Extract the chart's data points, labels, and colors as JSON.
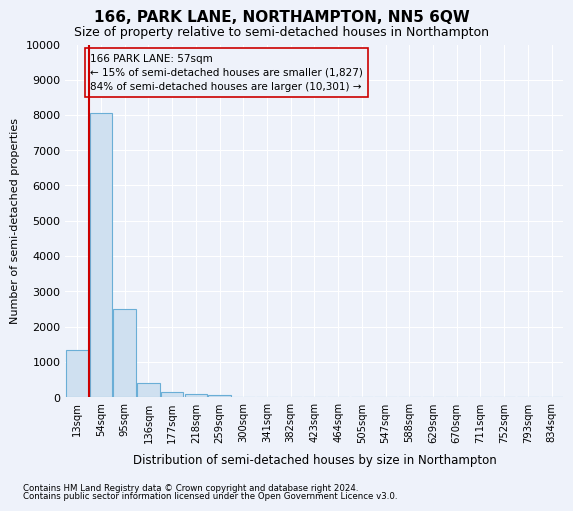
{
  "title": "166, PARK LANE, NORTHAMPTON, NN5 6QW",
  "subtitle": "Size of property relative to semi-detached houses in Northampton",
  "xlabel_bottom": "Distribution of semi-detached houses by size in Northampton",
  "ylabel": "Number of semi-detached properties",
  "footer1": "Contains HM Land Registry data © Crown copyright and database right 2024.",
  "footer2": "Contains public sector information licensed under the Open Government Licence v3.0.",
  "bar_labels": [
    "13sqm",
    "54sqm",
    "95sqm",
    "136sqm",
    "177sqm",
    "218sqm",
    "259sqm",
    "300sqm",
    "341sqm",
    "382sqm",
    "423sqm",
    "464sqm",
    "505sqm",
    "547sqm",
    "588sqm",
    "629sqm",
    "670sqm",
    "711sqm",
    "752sqm",
    "793sqm",
    "834sqm"
  ],
  "bar_values": [
    1320,
    8050,
    2500,
    400,
    150,
    90,
    60,
    0,
    0,
    0,
    0,
    0,
    0,
    0,
    0,
    0,
    0,
    0,
    0,
    0,
    0
  ],
  "bar_color": "#cfe0f0",
  "bar_edge_color": "#6aaed6",
  "property_line_x": 0.5,
  "property_sqm": 57,
  "pct_smaller": 15,
  "count_smaller": 1827,
  "pct_larger": 84,
  "count_larger": 10301,
  "annotation_label": "166 PARK LANE: 57sqm",
  "annotation_line_color": "#cc0000",
  "annotation_box_edge_color": "#cc0000",
  "ylim": [
    0,
    10000
  ],
  "yticks": [
    0,
    1000,
    2000,
    3000,
    4000,
    5000,
    6000,
    7000,
    8000,
    9000,
    10000
  ],
  "background_color": "#eef2fa",
  "grid_color": "#ffffff",
  "title_fontsize": 11,
  "subtitle_fontsize": 9
}
